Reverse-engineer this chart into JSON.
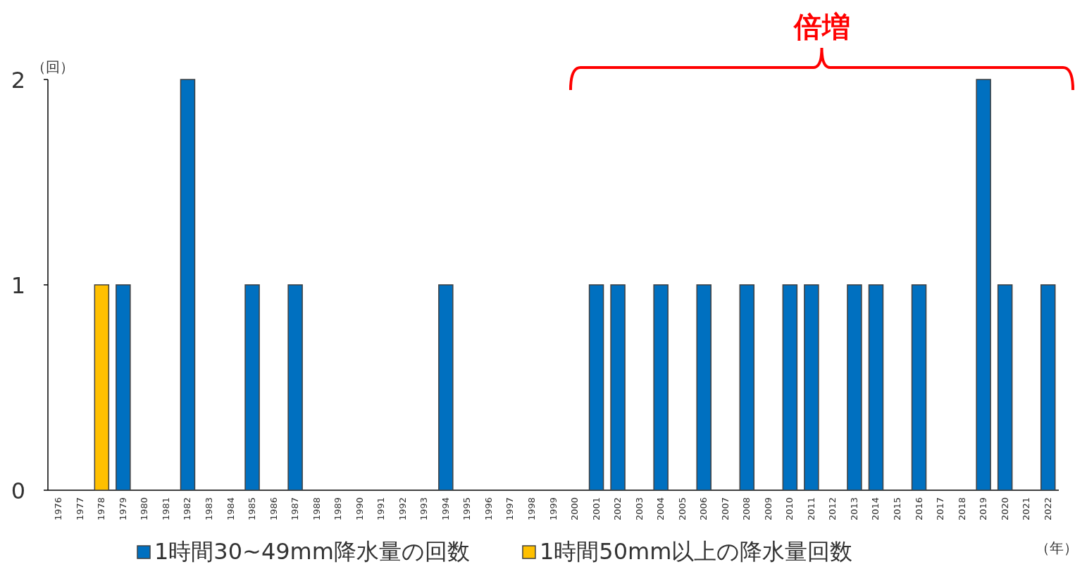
{
  "chart_data": {
    "type": "bar",
    "legend": "bottom",
    "ylabel": "（回）",
    "xlabel": "（年）",
    "annotations": [
      "倍増"
    ],
    "ylim": [
      0,
      2
    ],
    "yticks": [
      0,
      1,
      2
    ],
    "categories": [
      "1976",
      "1977",
      "1978",
      "1979",
      "1980",
      "1981",
      "1982",
      "1983",
      "1984",
      "1985",
      "1986",
      "1987",
      "1988",
      "1989",
      "1990",
      "1991",
      "1992",
      "1993",
      "1994",
      "1995",
      "1996",
      "1997",
      "1998",
      "1999",
      "2000",
      "2001",
      "2002",
      "2003",
      "2004",
      "2005",
      "2006",
      "2007",
      "2008",
      "2009",
      "2010",
      "2011",
      "2012",
      "2013",
      "2014",
      "2015",
      "2016",
      "2017",
      "2018",
      "2019",
      "2020",
      "2021",
      "2022"
    ],
    "series": [
      {
        "name": "1時間30~49mm降水量の回数",
        "color": "#0070c0",
        "values": [
          0,
          0,
          0,
          1,
          0,
          0,
          2,
          0,
          0,
          1,
          0,
          1,
          0,
          0,
          0,
          0,
          0,
          0,
          1,
          0,
          0,
          0,
          0,
          0,
          0,
          1,
          1,
          0,
          1,
          0,
          1,
          0,
          1,
          0,
          1,
          1,
          0,
          1,
          1,
          0,
          1,
          0,
          0,
          2,
          1,
          0,
          1
        ]
      },
      {
        "name": "1時間50mm以上の降水量回数",
        "color": "#ffc000",
        "values": [
          0,
          0,
          1,
          0,
          0,
          0,
          0,
          0,
          0,
          0,
          0,
          0,
          0,
          0,
          0,
          0,
          0,
          0,
          0,
          0,
          0,
          0,
          0,
          0,
          0,
          0,
          0,
          0,
          0,
          0,
          0,
          0,
          0,
          0,
          0,
          0,
          0,
          0,
          0,
          0,
          0,
          0,
          0,
          0,
          0,
          0,
          0
        ]
      }
    ]
  }
}
